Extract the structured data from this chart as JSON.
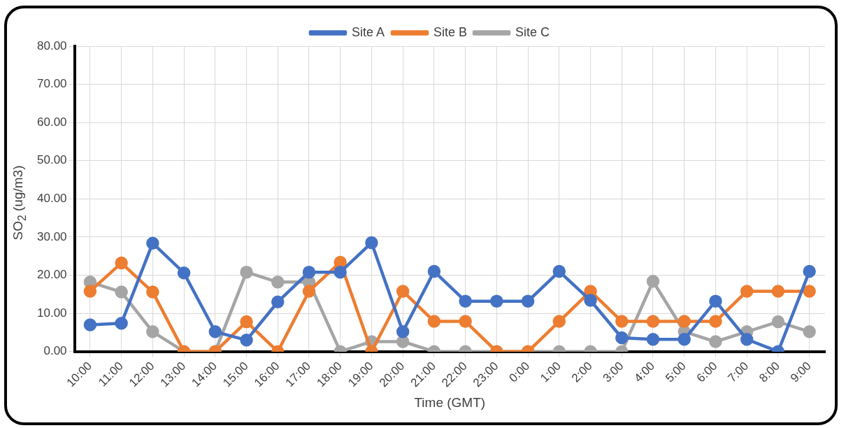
{
  "chart_data": {
    "type": "line",
    "xlabel": "Time (GMT)",
    "ylabel": "SO$_{2}$ (ug/m3)",
    "categories": [
      "10:00",
      "11:00",
      "12:00",
      "13:00",
      "14:00",
      "15:00",
      "16:00",
      "17:00",
      "18:00",
      "19:00",
      "20:00",
      "21:00",
      "22:00",
      "23:00",
      "0:00",
      "1:00",
      "2:00",
      "3:00",
      "4:00",
      "5:00",
      "6:00",
      "7:00",
      "8:00",
      "9:00"
    ],
    "series": [
      {
        "name": "Site A",
        "color": "#4472c4",
        "values": [
          7.0,
          7.4,
          28.4,
          20.6,
          5.2,
          3.0,
          13.0,
          20.8,
          20.8,
          28.5,
          5.2,
          21.0,
          13.2,
          13.2,
          13.2,
          21.0,
          13.4,
          3.6,
          3.2,
          3.2,
          13.2,
          3.2,
          0,
          21.0
        ]
      },
      {
        "name": "Site B",
        "color": "#ed7d31",
        "values": [
          15.8,
          23.2,
          15.6,
          0,
          0,
          7.8,
          0,
          15.8,
          23.4,
          0,
          15.8,
          7.9,
          7.9,
          0,
          0,
          7.9,
          15.8,
          7.9,
          7.9,
          7.9,
          7.9,
          15.8,
          15.8,
          15.8
        ]
      },
      {
        "name": "Site C",
        "color": "#a5a5a5",
        "values": [
          18.2,
          15.6,
          5.2,
          0,
          0,
          20.8,
          18.2,
          18.2,
          0,
          2.6,
          2.6,
          0,
          0,
          0,
          0,
          0,
          0,
          0,
          18.4,
          5.2,
          2.6,
          5.2,
          7.8,
          5.2
        ]
      }
    ],
    "ylim": [
      0,
      80
    ],
    "yticks": [
      {
        "value": 0,
        "label": "0.00"
      },
      {
        "value": 10,
        "label": "10.00"
      },
      {
        "value": 20,
        "label": "20.00"
      },
      {
        "value": 30,
        "label": "30.00"
      },
      {
        "value": 40,
        "label": "40.00"
      },
      {
        "value": 50,
        "label": "50.00"
      },
      {
        "value": 60,
        "label": "60.00"
      },
      {
        "value": 70,
        "label": "70.00"
      },
      {
        "value": 80,
        "label": "80.00"
      }
    ],
    "grid": true,
    "legend": "top",
    "marker": "circle",
    "line_style": "solid"
  }
}
